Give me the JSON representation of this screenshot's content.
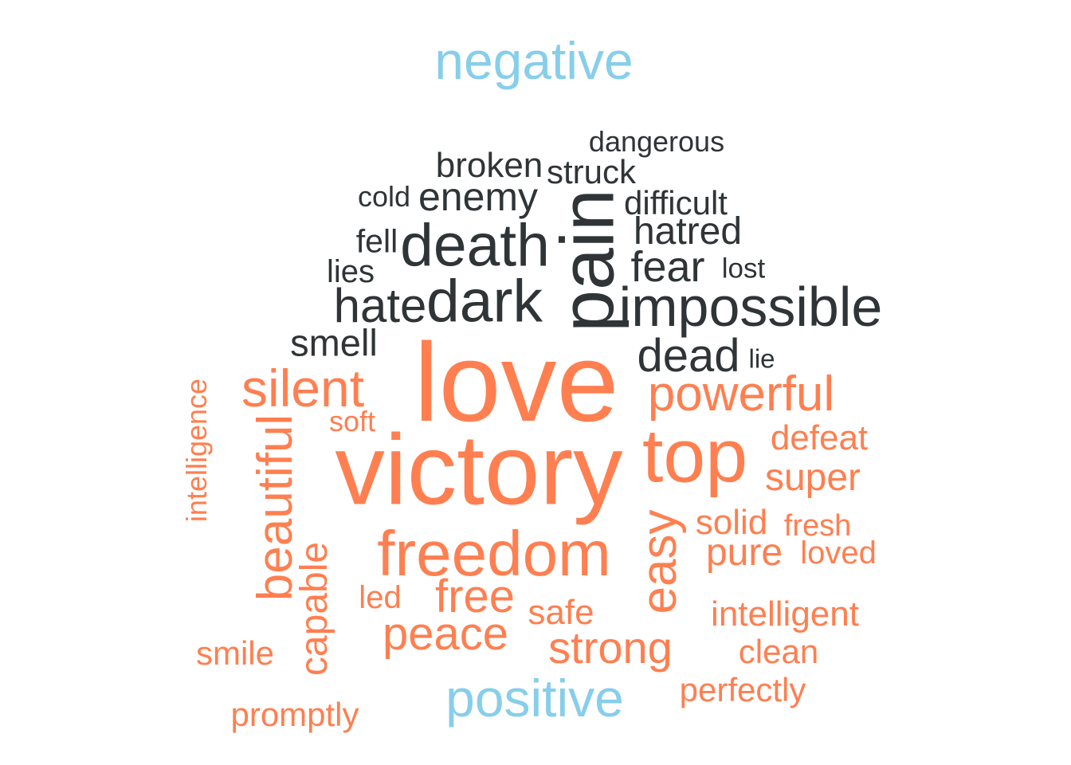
{
  "chart_data": {
    "type": "wordcloud",
    "colors": {
      "group_label": "#87CEEB",
      "negative": "#2F3437",
      "positive": "#FF7F50"
    },
    "labels": {
      "negative": "negative",
      "positive": "positive"
    },
    "groups": [
      {
        "name": "negative",
        "words": [
          {
            "text": "pain",
            "weight": 95,
            "rotated": true
          },
          {
            "text": "death",
            "weight": 75
          },
          {
            "text": "dark",
            "weight": 75
          },
          {
            "text": "impossible",
            "weight": 70
          },
          {
            "text": "hate",
            "weight": 60
          },
          {
            "text": "dead",
            "weight": 58
          },
          {
            "text": "fear",
            "weight": 54
          },
          {
            "text": "enemy",
            "weight": 50
          },
          {
            "text": "hatred",
            "weight": 48
          },
          {
            "text": "smell",
            "weight": 47
          },
          {
            "text": "broken",
            "weight": 44
          },
          {
            "text": "struck",
            "weight": 42
          },
          {
            "text": "difficult",
            "weight": 42
          },
          {
            "text": "fell",
            "weight": 41
          },
          {
            "text": "lies",
            "weight": 40
          },
          {
            "text": "dangerous",
            "weight": 36
          },
          {
            "text": "cold",
            "weight": 36
          },
          {
            "text": "lost",
            "weight": 35
          },
          {
            "text": "lie",
            "weight": 33
          }
        ]
      },
      {
        "name": "positive",
        "words": [
          {
            "text": "love",
            "weight": 140
          },
          {
            "text": "victory",
            "weight": 125
          },
          {
            "text": "top",
            "weight": 95
          },
          {
            "text": "freedom",
            "weight": 80
          },
          {
            "text": "silent",
            "weight": 66
          },
          {
            "text": "beautiful",
            "weight": 62,
            "rotated": true
          },
          {
            "text": "powerful",
            "weight": 62
          },
          {
            "text": "easy",
            "weight": 62,
            "rotated": true
          },
          {
            "text": "peace",
            "weight": 58
          },
          {
            "text": "free",
            "weight": 58
          },
          {
            "text": "strong",
            "weight": 56
          },
          {
            "text": "capable",
            "weight": 48,
            "rotated": true
          },
          {
            "text": "super",
            "weight": 48
          },
          {
            "text": "pure",
            "weight": 48
          },
          {
            "text": "defeat",
            "weight": 44
          },
          {
            "text": "intelligent",
            "weight": 44
          },
          {
            "text": "safe",
            "weight": 44
          },
          {
            "text": "solid",
            "weight": 44
          },
          {
            "text": "clean",
            "weight": 42
          },
          {
            "text": "perfectly",
            "weight": 42
          },
          {
            "text": "smile",
            "weight": 42
          },
          {
            "text": "promptly",
            "weight": 42
          },
          {
            "text": "loved",
            "weight": 40
          },
          {
            "text": "led",
            "weight": 40
          },
          {
            "text": "fresh",
            "weight": 38
          },
          {
            "text": "soft",
            "weight": 36
          },
          {
            "text": "intelligence",
            "weight": 36,
            "rotated": true
          }
        ]
      }
    ]
  }
}
